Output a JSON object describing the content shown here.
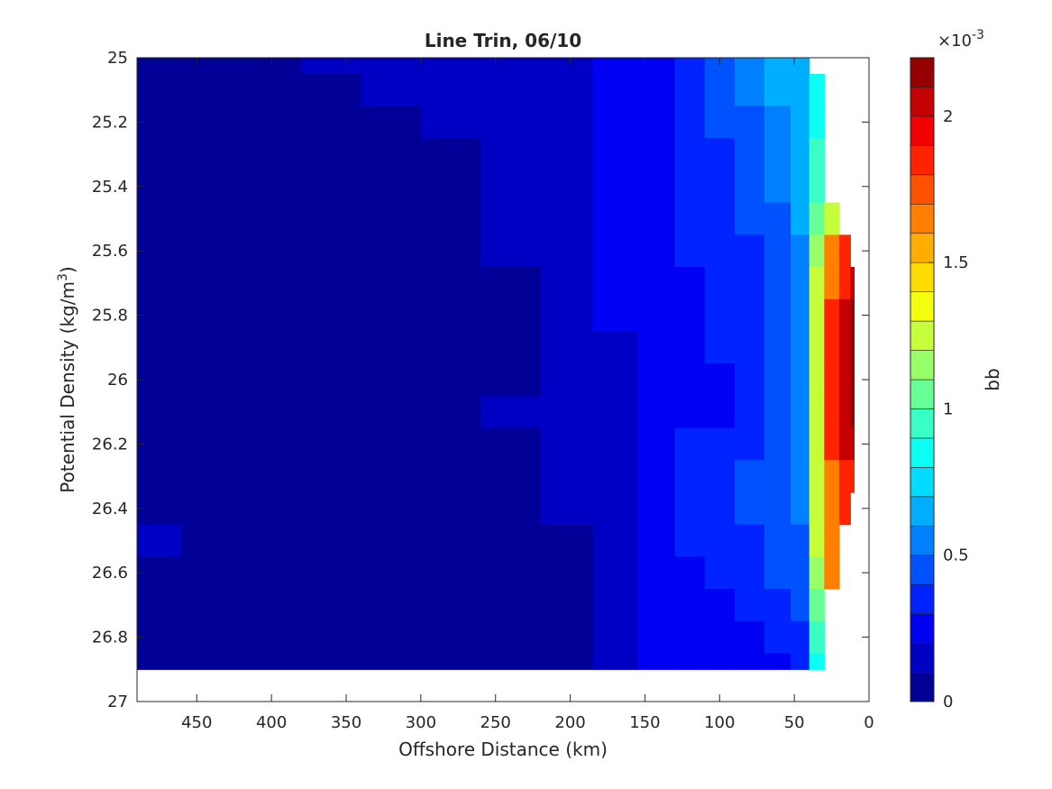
{
  "chart_data": {
    "type": "heatmap",
    "title": "Line Trin, 06/10",
    "xlabel": "Offshore Distance (km)",
    "ylabel_main": "Potential Density (kg/m",
    "ylabel_sup": "3",
    "ylabel_close": ")",
    "xlim": [
      490,
      0
    ],
    "ylim": [
      25,
      27
    ],
    "x_reversed": true,
    "y_reversed": true,
    "xticks": [
      450,
      400,
      350,
      300,
      250,
      200,
      150,
      100,
      50,
      0
    ],
    "xtick_labels": [
      "450",
      "400",
      "350",
      "300",
      "250",
      "200",
      "150",
      "100",
      "50",
      "0"
    ],
    "yticks": [
      25,
      25.2,
      25.4,
      25.6,
      25.8,
      26,
      26.2,
      26.4,
      26.6,
      26.8,
      27
    ],
    "ytick_labels": [
      "25",
      "25.2",
      "25.4",
      "25.6",
      "25.8",
      "26",
      "26.2",
      "26.4",
      "26.6",
      "26.8",
      "27"
    ],
    "grid": false,
    "colorbar": {
      "label": "bb",
      "exponent_base": "×10",
      "exponent_power": "-3",
      "range": [
        0,
        2.2
      ],
      "levels": 22,
      "ticks": [
        0,
        0.5,
        1,
        1.5,
        2
      ],
      "tick_labels": [
        "0",
        "0.5",
        "1",
        "1.5",
        "2"
      ],
      "colormap": "jet"
    },
    "data_extent": {
      "x_range": [
        490,
        10
      ],
      "y_range": [
        25,
        26.9
      ],
      "note_units": "km, kg/m3"
    },
    "x": [
      480,
      440,
      400,
      360,
      320,
      280,
      240,
      200,
      170,
      140,
      120,
      100,
      80,
      60,
      45,
      35,
      25,
      15,
      10
    ],
    "y": [
      25,
      25.1,
      25.2,
      25.3,
      25.4,
      25.5,
      25.6,
      25.7,
      25.8,
      25.9,
      26,
      26.1,
      26.2,
      26.3,
      26.4,
      26.5,
      26.6,
      26.7,
      26.8,
      26.9
    ],
    "values_x1e-3": [
      [
        0.05,
        0.05,
        0.05,
        0.1,
        0.15,
        0.15,
        0.15,
        0.15,
        0.2,
        0.25,
        0.3,
        0.4,
        0.5,
        0.6,
        0.65,
        null,
        null,
        null,
        null
      ],
      [
        0.05,
        0.05,
        0.05,
        0.05,
        0.15,
        0.15,
        0.15,
        0.15,
        0.2,
        0.25,
        0.3,
        0.4,
        0.5,
        0.6,
        0.7,
        0.8,
        null,
        null,
        null
      ],
      [
        0.05,
        0.05,
        0.05,
        0.05,
        0.05,
        0.15,
        0.15,
        0.15,
        0.2,
        0.25,
        0.3,
        0.4,
        0.45,
        0.55,
        0.65,
        0.85,
        null,
        null,
        null
      ],
      [
        0.05,
        0.05,
        0.05,
        0.05,
        0.05,
        0.05,
        0.15,
        0.15,
        0.2,
        0.25,
        0.3,
        0.35,
        0.45,
        0.55,
        0.65,
        0.9,
        null,
        null,
        null
      ],
      [
        0.05,
        0.05,
        0.05,
        0.05,
        0.05,
        0.05,
        0.15,
        0.15,
        0.2,
        0.25,
        0.3,
        0.35,
        0.4,
        0.5,
        0.6,
        0.95,
        null,
        null,
        null
      ],
      [
        0.05,
        0.05,
        0.05,
        0.05,
        0.05,
        0.05,
        0.15,
        0.15,
        0.2,
        0.25,
        0.3,
        0.35,
        0.4,
        0.45,
        0.6,
        1.0,
        1.2,
        null,
        null
      ],
      [
        0.05,
        0.05,
        0.05,
        0.05,
        0.05,
        0.05,
        0.15,
        0.15,
        0.2,
        0.25,
        0.3,
        0.3,
        0.35,
        0.4,
        0.55,
        1.1,
        1.6,
        1.8,
        null
      ],
      [
        0.05,
        0.05,
        0.05,
        0.05,
        0.05,
        0.05,
        0.05,
        0.15,
        0.2,
        0.2,
        0.25,
        0.3,
        0.35,
        0.4,
        0.55,
        1.2,
        1.7,
        1.9,
        2.0
      ],
      [
        0.05,
        0.05,
        0.05,
        0.05,
        0.05,
        0.05,
        0.05,
        0.15,
        0.2,
        0.2,
        0.25,
        0.3,
        0.35,
        0.4,
        0.5,
        1.2,
        1.8,
        2.0,
        2.1
      ],
      [
        0.05,
        0.05,
        0.05,
        0.05,
        0.05,
        0.05,
        0.05,
        0.15,
        0.15,
        0.2,
        0.25,
        0.3,
        0.35,
        0.4,
        0.5,
        1.2,
        1.8,
        2.0,
        2.1
      ],
      [
        0.05,
        0.05,
        0.05,
        0.05,
        0.05,
        0.05,
        0.05,
        0.15,
        0.15,
        0.2,
        0.25,
        0.25,
        0.3,
        0.4,
        0.5,
        1.2,
        1.8,
        2.0,
        2.1
      ],
      [
        0.05,
        0.05,
        0.05,
        0.05,
        0.05,
        0.05,
        0.15,
        0.15,
        0.15,
        0.2,
        0.25,
        0.25,
        0.3,
        0.4,
        0.5,
        1.2,
        1.8,
        2.0,
        2.1
      ],
      [
        0.05,
        0.05,
        0.05,
        0.05,
        0.05,
        0.05,
        0.05,
        0.15,
        0.15,
        0.2,
        0.3,
        0.3,
        0.35,
        0.4,
        0.5,
        1.2,
        1.8,
        2.0,
        2.0
      ],
      [
        0.05,
        0.05,
        0.05,
        0.05,
        0.05,
        0.05,
        0.05,
        0.15,
        0.15,
        0.25,
        0.3,
        0.35,
        0.4,
        0.45,
        0.5,
        1.2,
        1.7,
        1.9,
        1.9
      ],
      [
        0.05,
        0.05,
        0.05,
        0.05,
        0.05,
        0.05,
        0.05,
        0.15,
        0.15,
        0.25,
        0.3,
        0.35,
        0.4,
        0.45,
        0.5,
        1.2,
        1.7,
        1.9,
        null
      ],
      [
        0.15,
        0.05,
        0.05,
        0.05,
        0.05,
        0.05,
        0.05,
        0.05,
        0.15,
        0.2,
        0.3,
        0.35,
        0.35,
        0.45,
        0.4,
        1.2,
        1.6,
        null,
        null
      ],
      [
        0.05,
        0.05,
        0.05,
        0.05,
        0.05,
        0.05,
        0.05,
        0.05,
        0.15,
        0.2,
        0.25,
        0.3,
        0.3,
        0.4,
        0.45,
        1.1,
        1.6,
        null,
        null
      ],
      [
        0.05,
        0.05,
        0.05,
        0.05,
        0.05,
        0.05,
        0.05,
        0.05,
        0.15,
        0.2,
        0.25,
        0.25,
        0.3,
        0.35,
        0.4,
        1.0,
        null,
        null,
        null
      ],
      [
        0.05,
        0.05,
        0.05,
        0.05,
        0.05,
        0.05,
        0.05,
        0.05,
        0.15,
        0.2,
        0.2,
        0.25,
        0.2,
        0.3,
        0.35,
        0.9,
        null,
        null,
        null
      ],
      [
        0.05,
        0.05,
        0.05,
        0.05,
        0.05,
        0.05,
        0.05,
        0.05,
        0.15,
        0.2,
        0.2,
        0.2,
        0.2,
        0.25,
        0.3,
        0.8,
        null,
        null,
        null
      ]
    ]
  }
}
